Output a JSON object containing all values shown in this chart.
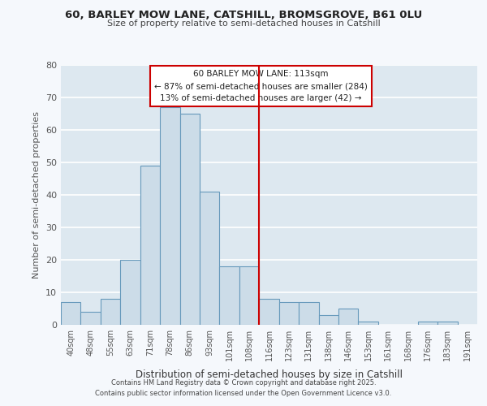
{
  "title_line1": "60, BARLEY MOW LANE, CATSHILL, BROMSGROVE, B61 0LU",
  "title_line2": "Size of property relative to semi-detached houses in Catshill",
  "xlabel": "Distribution of semi-detached houses by size in Catshill",
  "ylabel": "Number of semi-detached properties",
  "bar_labels": [
    "40sqm",
    "48sqm",
    "55sqm",
    "63sqm",
    "71sqm",
    "78sqm",
    "86sqm",
    "93sqm",
    "101sqm",
    "108sqm",
    "116sqm",
    "123sqm",
    "131sqm",
    "138sqm",
    "146sqm",
    "153sqm",
    "161sqm",
    "168sqm",
    "176sqm",
    "183sqm",
    "191sqm"
  ],
  "bar_values": [
    7,
    4,
    8,
    20,
    49,
    67,
    65,
    41,
    18,
    18,
    8,
    7,
    7,
    3,
    5,
    1,
    0,
    0,
    1,
    1,
    0
  ],
  "bar_color": "#ccdce8",
  "bar_edge_color": "#6699bb",
  "plot_bg_color": "#dde8f0",
  "figure_bg_color": "#f5f8fc",
  "grid_color": "#ffffff",
  "red_line_color": "#cc0000",
  "annotation_box_edge_color": "#cc0000",
  "property_label": "60 BARLEY MOW LANE: 113sqm",
  "annotation_line2": "← 87% of semi-detached houses are smaller (284)",
  "annotation_line3": "13% of semi-detached houses are larger (42) →",
  "red_line_x": 10.0,
  "ylim": [
    0,
    80
  ],
  "yticks": [
    0,
    10,
    20,
    30,
    40,
    50,
    60,
    70,
    80
  ],
  "footer_line1": "Contains HM Land Registry data © Crown copyright and database right 2025.",
  "footer_line2": "Contains public sector information licensed under the Open Government Licence v3.0."
}
